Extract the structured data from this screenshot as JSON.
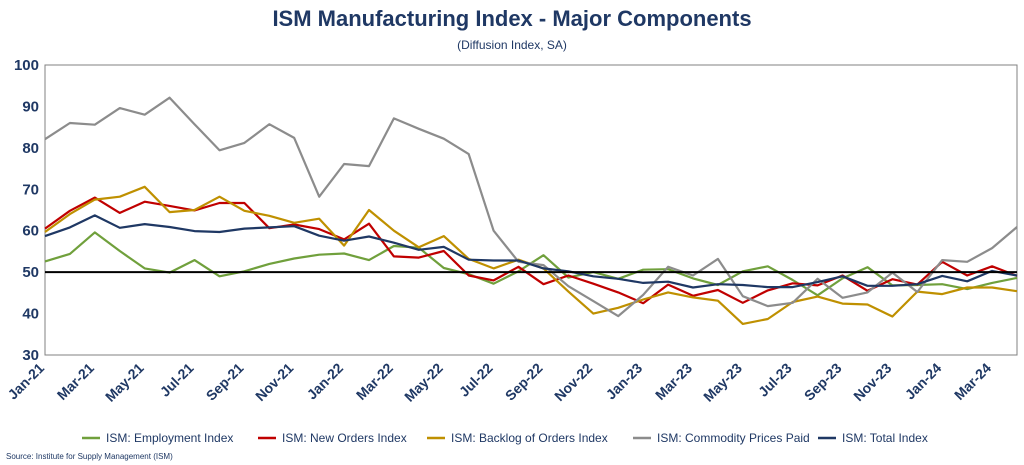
{
  "chart_data": {
    "type": "line",
    "title": "ISM Manufacturing Index - Major Components",
    "subtitle": "(Diffusion Index, SA)",
    "source": "Source: Institute for Supply Management (ISM)",
    "ylim": [
      30,
      100
    ],
    "yticks": [
      30,
      40,
      50,
      60,
      70,
      80,
      90,
      100
    ],
    "reference_line": 50,
    "grid": false,
    "legend_position": "bottom",
    "x": [
      "Jan-21",
      "Feb-21",
      "Mar-21",
      "Apr-21",
      "May-21",
      "Jun-21",
      "Jul-21",
      "Aug-21",
      "Sep-21",
      "Oct-21",
      "Nov-21",
      "Dec-21",
      "Jan-22",
      "Feb-22",
      "Mar-22",
      "Apr-22",
      "May-22",
      "Jun-22",
      "Jul-22",
      "Aug-22",
      "Sep-22",
      "Oct-22",
      "Nov-22",
      "Dec-22",
      "Jan-23",
      "Feb-23",
      "Mar-23",
      "Apr-23",
      "May-23",
      "Jun-23",
      "Jul-23",
      "Aug-23",
      "Sep-23",
      "Oct-23",
      "Nov-23",
      "Dec-23",
      "Jan-24",
      "Feb-24",
      "Mar-24",
      "Apr-24"
    ],
    "x_tick_labels": [
      "Jan-21",
      "Mar-21",
      "May-21",
      "Jul-21",
      "Sep-21",
      "Nov-21",
      "Jan-22",
      "Mar-22",
      "May-22",
      "Jul-22",
      "Sep-22",
      "Nov-22",
      "Jan-23",
      "Mar-23",
      "May-23",
      "Jul-23",
      "Sep-23",
      "Nov-23",
      "Jan-24",
      "Mar-24"
    ],
    "series": [
      {
        "name": "ISM: Employment Index",
        "color": "#70a03c",
        "values": [
          52.6,
          54.4,
          59.6,
          55.1,
          50.9,
          49.9,
          52.9,
          49.0,
          50.2,
          52.0,
          53.3,
          54.2,
          54.5,
          52.9,
          56.3,
          55.9,
          51.0,
          49.5,
          47.2,
          50.2,
          54.1,
          48.7,
          50.0,
          48.4,
          50.6,
          50.7,
          48.5,
          46.9,
          50.2,
          51.4,
          48.1,
          44.4,
          48.5,
          51.2,
          46.8,
          46.9,
          47.1,
          45.9,
          47.4,
          48.6
        ]
      },
      {
        "name": "ISM: New Orders Index",
        "color": "#c00000",
        "values": [
          60.5,
          64.8,
          68.0,
          64.3,
          67.0,
          66.0,
          64.9,
          66.7,
          66.7,
          60.6,
          61.5,
          60.4,
          57.9,
          61.7,
          53.8,
          53.5,
          55.1,
          49.2,
          48.0,
          51.3,
          47.1,
          49.2,
          47.2,
          45.1,
          42.5,
          47.0,
          44.3,
          45.7,
          42.6,
          45.6,
          47.3,
          46.8,
          49.2,
          45.5,
          48.3,
          47.0,
          52.5,
          49.2,
          51.4,
          49.1
        ]
      },
      {
        "name": "ISM: Backlog of Orders Index",
        "color": "#bf9000",
        "values": [
          59.7,
          64.0,
          67.5,
          68.2,
          70.6,
          64.5,
          65.0,
          68.2,
          64.8,
          63.6,
          61.9,
          62.9,
          56.4,
          65.0,
          60.0,
          56.0,
          58.7,
          53.2,
          50.9,
          53.0,
          50.9,
          45.3,
          40.0,
          41.4,
          43.4,
          45.1,
          43.9,
          43.1,
          37.5,
          38.7,
          42.8,
          44.1,
          42.4,
          42.2,
          39.3,
          45.3,
          44.7,
          46.3,
          46.3,
          45.4
        ]
      },
      {
        "name": "ISM: Commodity Prices Paid",
        "color": "#8c8c8c",
        "values": [
          82.1,
          86.0,
          85.6,
          89.6,
          88.0,
          92.1,
          85.7,
          79.4,
          81.2,
          85.7,
          82.4,
          68.2,
          76.1,
          75.6,
          87.1,
          84.6,
          82.2,
          78.5,
          60.0,
          52.5,
          51.7,
          46.6,
          43.0,
          39.4,
          44.5,
          51.3,
          49.2,
          53.2,
          44.2,
          41.8,
          42.6,
          48.4,
          43.8,
          45.1,
          49.9,
          45.2,
          52.9,
          52.5,
          55.8,
          60.9
        ]
      },
      {
        "name": "ISM: Total Index",
        "color": "#1f3864",
        "values": [
          58.7,
          60.8,
          63.7,
          60.7,
          61.6,
          60.9,
          59.9,
          59.7,
          60.5,
          60.8,
          61.1,
          58.8,
          57.6,
          58.6,
          57.1,
          55.4,
          56.1,
          53.0,
          52.8,
          52.8,
          50.9,
          50.2,
          49.0,
          48.4,
          47.4,
          47.7,
          46.3,
          47.1,
          46.9,
          46.4,
          46.4,
          47.6,
          49.0,
          46.7,
          46.7,
          47.1,
          49.1,
          47.8,
          50.3,
          49.2
        ]
      }
    ]
  }
}
